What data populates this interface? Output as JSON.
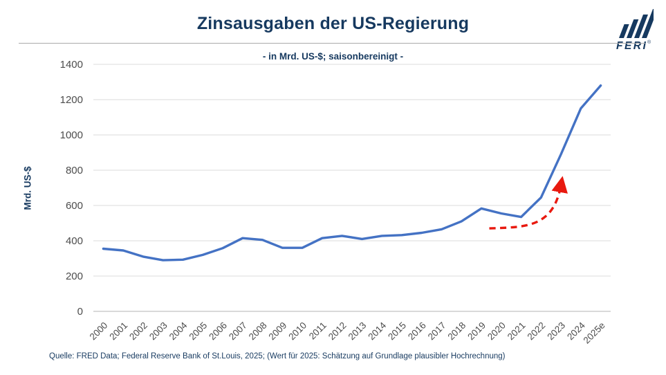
{
  "header": {
    "title": "Zinsausgaben der US-Regierung",
    "subtitle": "- in Mrd. US-$; saisonbereinigt -",
    "logo": {
      "text": "FERI",
      "registered": "®"
    }
  },
  "chart_data": {
    "type": "line",
    "title": "Zinsausgaben der US-Regierung",
    "subtitle": "- in Mrd. US-$; saisonbereinigt -",
    "xlabel": "",
    "ylabel": "Mrd. US-$",
    "ylim": [
      0,
      1400
    ],
    "ytick_step": 200,
    "grid": true,
    "legend_position": "none",
    "categories": [
      "2000",
      "2001",
      "2002",
      "2003",
      "2004",
      "2005",
      "2006",
      "2007",
      "2008",
      "2009",
      "2010",
      "2011",
      "2012",
      "2013",
      "2014",
      "2015",
      "2016",
      "2017",
      "2018",
      "2019",
      "2020",
      "2021",
      "2022",
      "2023",
      "2024",
      "2025e"
    ],
    "series": [
      {
        "name": "Zinsausgaben der US-Regierung (Mrd. US-$)",
        "color": "#4472c4",
        "values": [
          355,
          345,
          310,
          290,
          293,
          320,
          358,
          415,
          405,
          360,
          360,
          415,
          428,
          410,
          428,
          432,
          445,
          465,
          510,
          583,
          555,
          535,
          645,
          890,
          1150,
          1280
        ]
      }
    ],
    "annotation_arrow": {
      "description": "red dashed trend arrow curving upward from 2020 to 2023",
      "color": "#e8190f",
      "style": "dashed",
      "points": {
        "start": [
          19.4,
          470
        ],
        "c1": [
          21.2,
          478
        ],
        "c2": [
          22.6,
          470
        ],
        "end": [
          23.0,
          715
        ]
      }
    }
  },
  "footer": {
    "source": "Quelle: FRED Data; Federal Reserve Bank of St.Louis, 2025; (Wert für 2025: Schätzung auf Grundlage plausibler Hochrechnung)"
  }
}
